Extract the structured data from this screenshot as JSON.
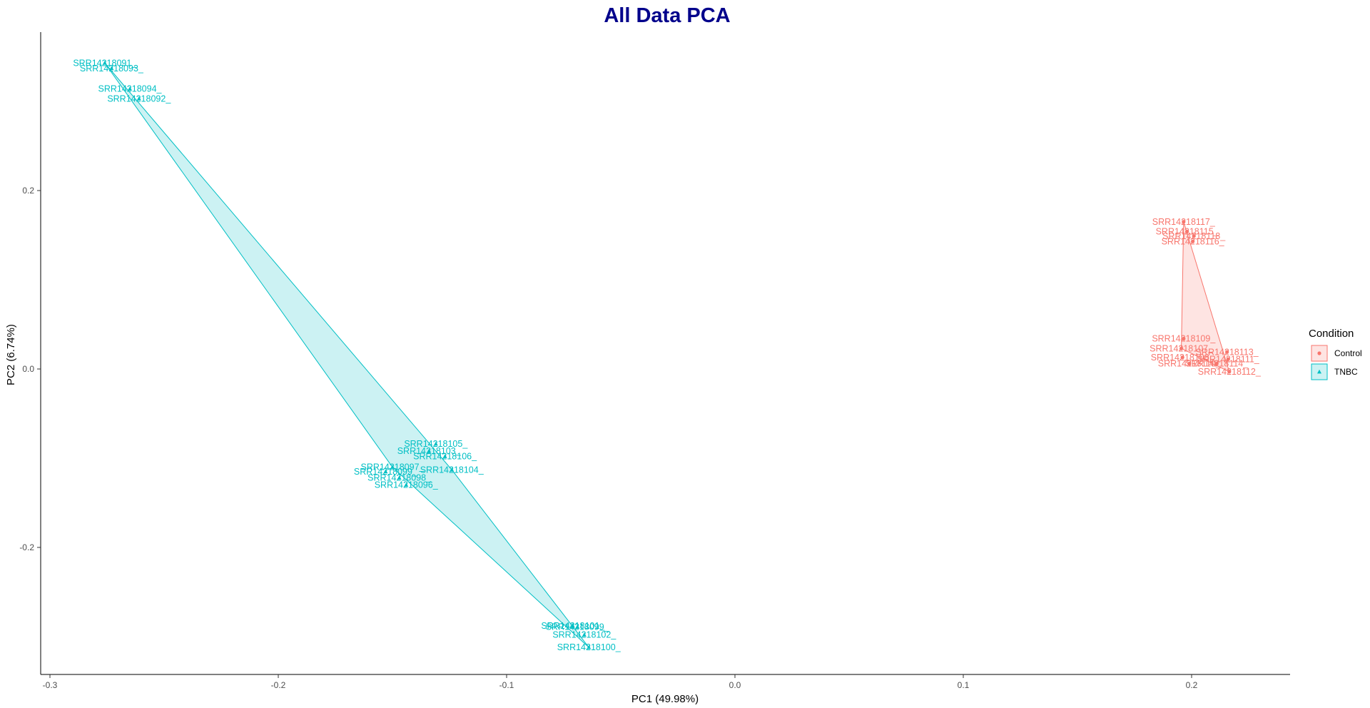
{
  "chart_data": {
    "type": "scatter",
    "title": "All Data PCA",
    "xlabel": "PC1 (49.98%)",
    "ylabel": "PC2 (6.74%)",
    "xlim": [
      -0.3,
      0.24
    ],
    "ylim": [
      -0.34,
      0.37
    ],
    "xticks": [
      -0.3,
      -0.2,
      -0.1,
      0.0,
      0.1,
      0.2
    ],
    "xtick_labels": [
      "-0.3",
      "-0.2",
      "-0.1",
      "0.0",
      "0.1",
      "0.2"
    ],
    "yticks": [
      -0.2,
      0.0,
      0.2
    ],
    "ytick_labels": [
      "-0.2",
      "0.0",
      "0.2"
    ],
    "grid": false,
    "legend": {
      "title": "Condition",
      "position": "right"
    },
    "series": [
      {
        "name": "Control",
        "color": "#F8766D",
        "fill": "#F8766D",
        "hull": [
          "SRR14218117_",
          "SRR14218112_",
          "SRR14218107_"
        ],
        "points": [
          {
            "label": "SRR14218117_",
            "x": 0.1965,
            "y": 0.165
          },
          {
            "label": "SRR14218115_",
            "x": 0.198,
            "y": 0.154
          },
          {
            "label": "SRR14218118_",
            "x": 0.201,
            "y": 0.149
          },
          {
            "label": "SRR14218116_",
            "x": 0.2005,
            "y": 0.143
          },
          {
            "label": "SRR14218109_",
            "x": 0.1965,
            "y": 0.034
          },
          {
            "label": "SRR14218107_",
            "x": 0.1955,
            "y": 0.023
          },
          {
            "label": "SRR14218113_",
            "x": 0.2155,
            "y": 0.019
          },
          {
            "label": "SRR14218108_",
            "x": 0.196,
            "y": 0.013
          },
          {
            "label": "SRR14218111_",
            "x": 0.216,
            "y": 0.011
          },
          {
            "label": "SRR14218110_",
            "x": 0.199,
            "y": 0.006
          },
          {
            "label": "SRR14218114_",
            "x": 0.211,
            "y": 0.006
          },
          {
            "label": "SRR14218112_",
            "x": 0.2165,
            "y": -0.003
          }
        ]
      },
      {
        "name": "TNBC",
        "color": "#00BFC4",
        "fill": "#00BFC4",
        "hull": [
          "SRR14218091_",
          "SRR14218104_",
          "SRR14218100_",
          "SRR14218097_"
        ],
        "points": [
          {
            "label": "SRR14218091_",
            "x": -0.276,
            "y": 0.343
          },
          {
            "label": "SRR14218093_",
            "x": -0.273,
            "y": 0.337
          },
          {
            "label": "SRR14218094_",
            "x": -0.265,
            "y": 0.314
          },
          {
            "label": "SRR14218092_",
            "x": -0.261,
            "y": 0.303
          },
          {
            "label": "SRR14218105_",
            "x": -0.131,
            "y": -0.084
          },
          {
            "label": "SRR14218103_",
            "x": -0.134,
            "y": -0.092
          },
          {
            "label": "SRR14218106_",
            "x": -0.127,
            "y": -0.098
          },
          {
            "label": "SRR14218104_",
            "x": -0.124,
            "y": -0.113
          },
          {
            "label": "SRR14218097_",
            "x": -0.15,
            "y": -0.11
          },
          {
            "label": "SRR14218099_",
            "x": -0.153,
            "y": -0.115
          },
          {
            "label": "SRR14218098_",
            "x": -0.147,
            "y": -0.122
          },
          {
            "label": "SRR14218096_",
            "x": -0.144,
            "y": -0.13
          },
          {
            "label": "SRR14218101_",
            "x": -0.071,
            "y": -0.288
          },
          {
            "label": "SRR14218099b_",
            "x": -0.069,
            "y": -0.289
          },
          {
            "label": "SRR14218102_",
            "x": -0.066,
            "y": -0.298
          },
          {
            "label": "SRR14218100_",
            "x": -0.064,
            "y": -0.312
          }
        ]
      }
    ]
  }
}
